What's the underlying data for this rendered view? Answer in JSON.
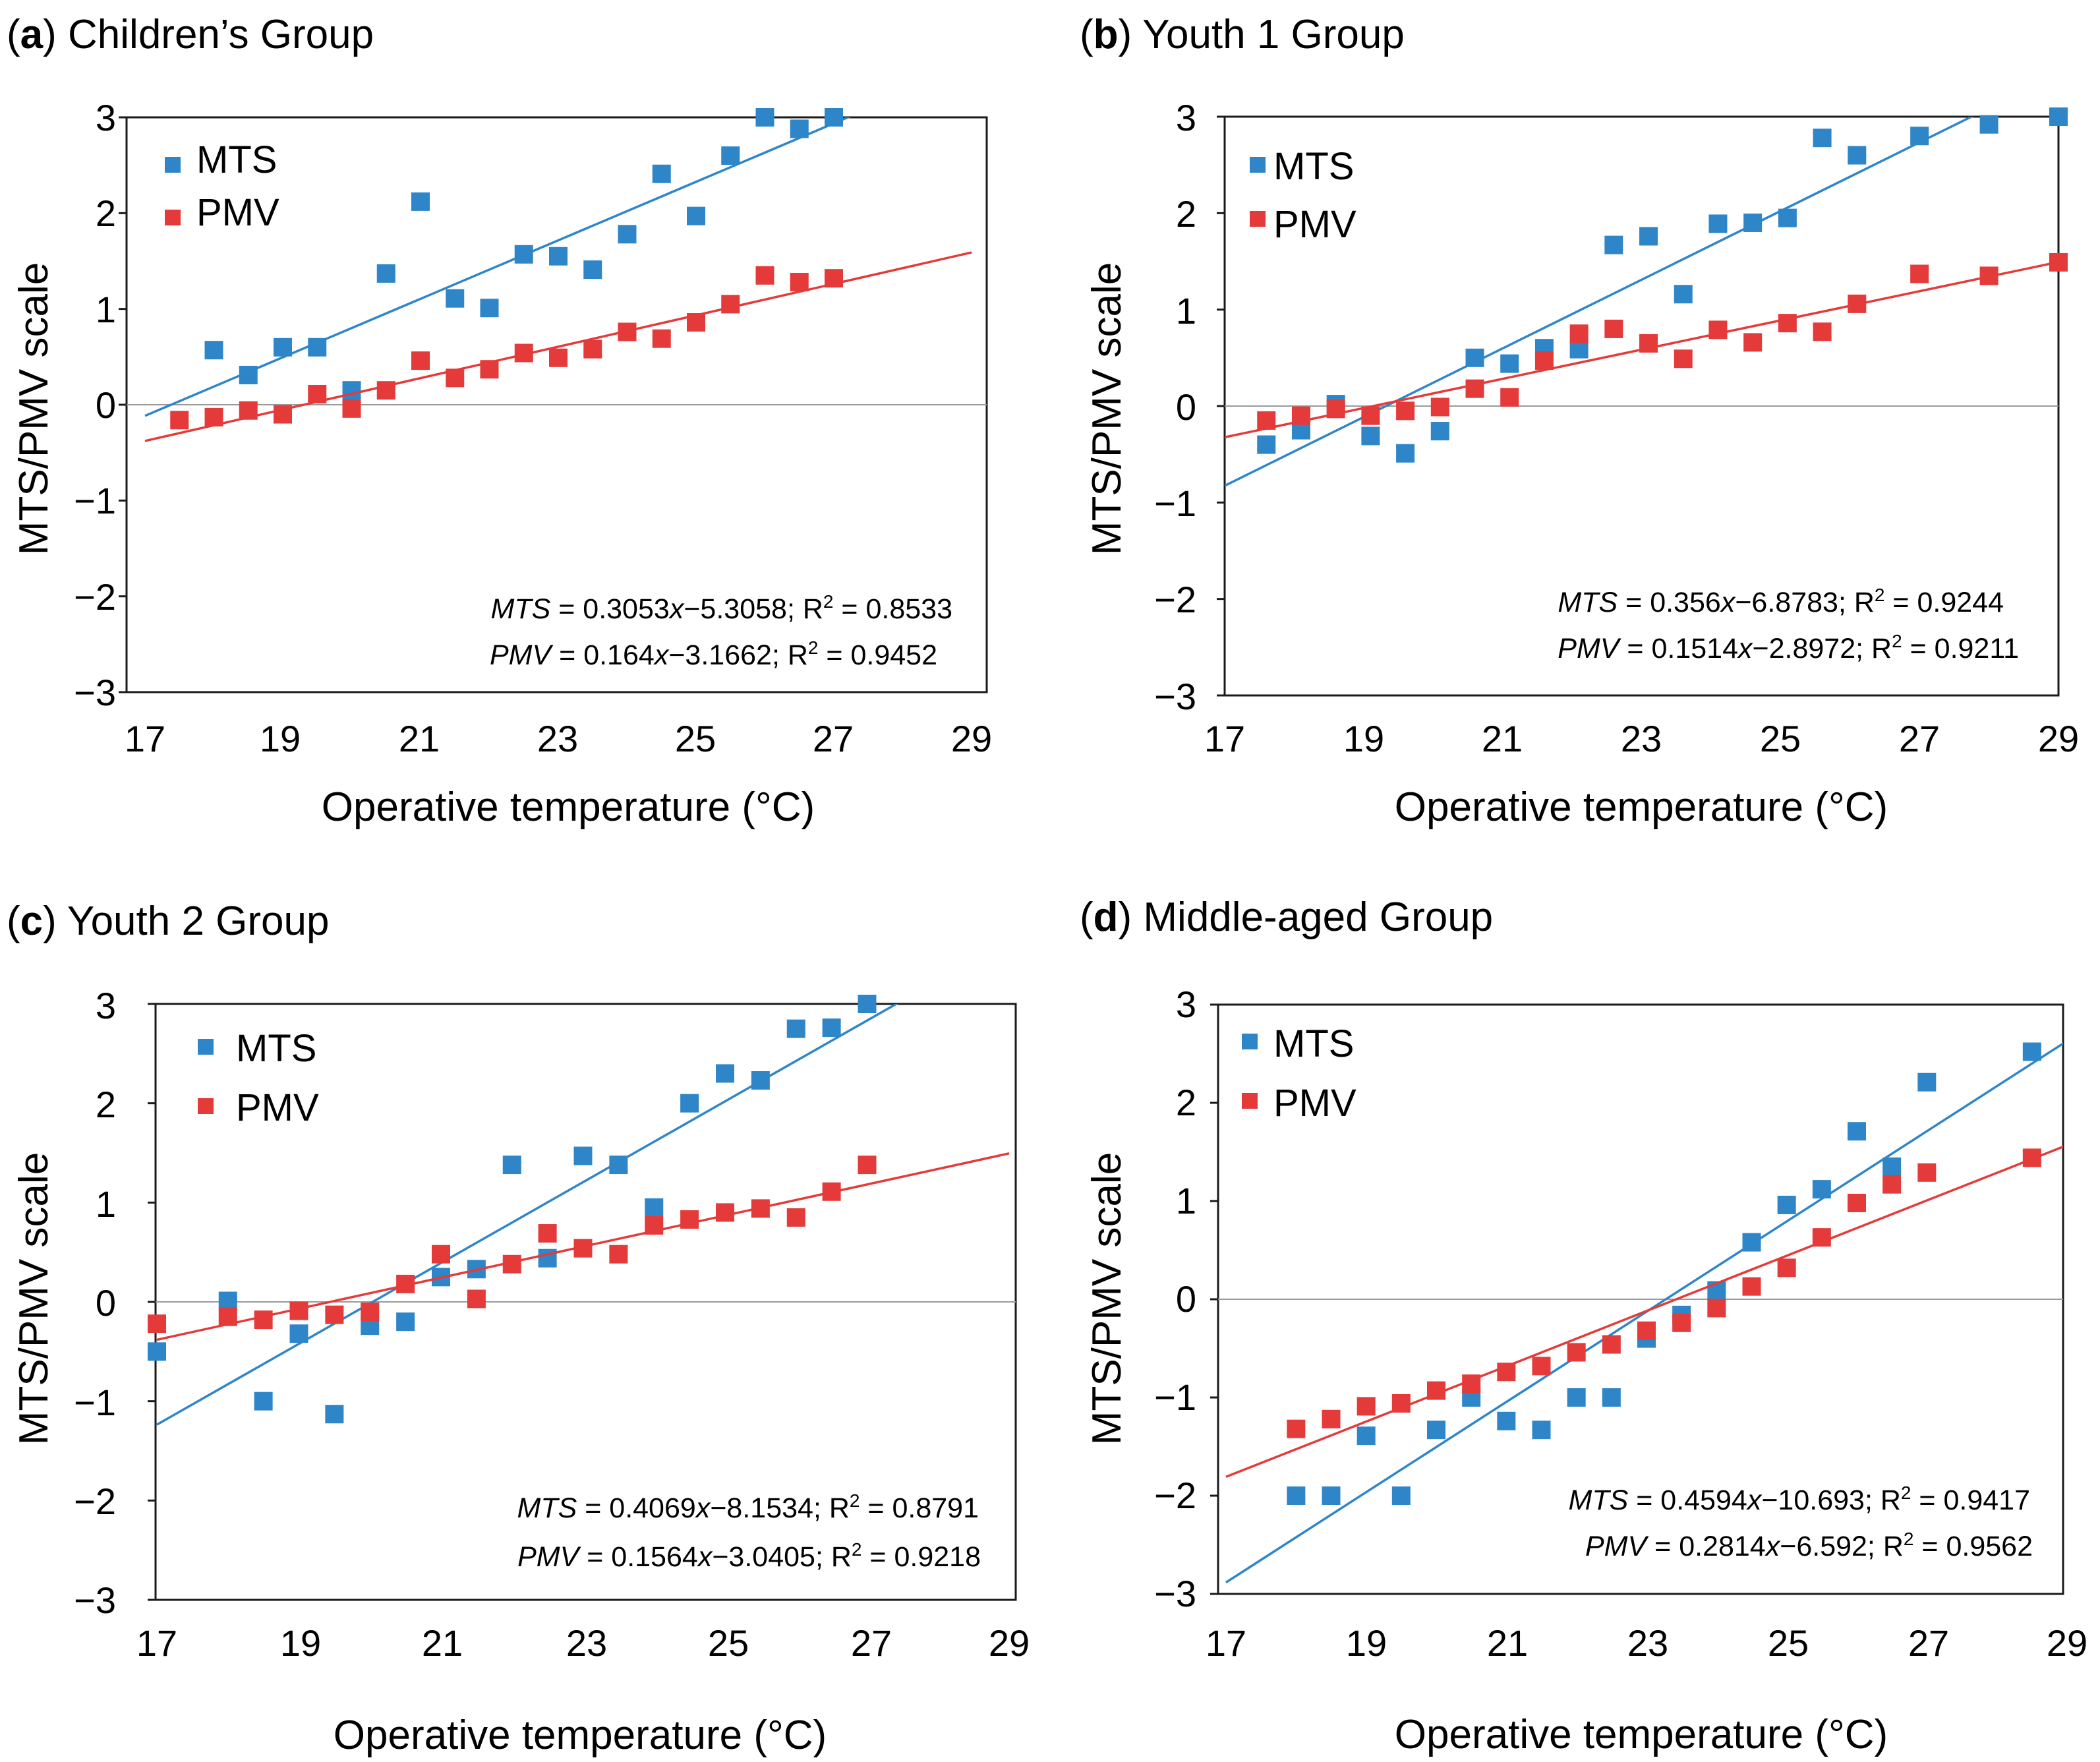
{
  "chart_data": [
    {
      "panel": "a",
      "title": "Children’s Group",
      "type": "scatter",
      "xlabel": "Operative temperature (°C)",
      "ylabel": "MTS/PMV scale",
      "xlim": [
        17,
        29
      ],
      "ylim": [
        -3,
        3
      ],
      "xticks": [
        "17",
        "19",
        "21",
        "23",
        "25",
        "27",
        "29"
      ],
      "yticks": [
        "3",
        "2",
        "1",
        "0",
        "−1",
        "−2",
        "−3"
      ],
      "legend": [
        "MTS",
        "PMV"
      ],
      "series": [
        {
          "name": "MTS",
          "color": "#2e86c8",
          "x": [
            18,
            18.5,
            19,
            19.5,
            20,
            20.5,
            21,
            21.5,
            22,
            22.5,
            23,
            23.5,
            24,
            24.5,
            25,
            25.5,
            26,
            26.5,
            27
          ],
          "y": [
            0.57,
            0.31,
            0.6,
            0.6,
            0.15,
            1.37,
            2.12,
            1.11,
            1.01,
            1.57,
            1.55,
            1.41,
            1.78,
            2.41,
            1.97,
            2.6,
            3.0,
            2.88,
            3.0
          ],
          "fit": {
            "slope": 0.3053,
            "intercept": -5.3058
          }
        },
        {
          "name": "PMV",
          "color": "#e53a3a",
          "x": [
            17.5,
            18,
            18.5,
            19,
            19.5,
            20,
            20.5,
            21,
            21.5,
            22,
            22.5,
            23,
            23.5,
            24,
            24.5,
            25,
            25.5,
            26,
            26.5,
            27
          ],
          "y": [
            -0.16,
            -0.13,
            -0.06,
            -0.1,
            0.11,
            -0.04,
            0.15,
            0.46,
            0.28,
            0.37,
            0.54,
            0.49,
            0.58,
            0.76,
            0.69,
            0.86,
            1.05,
            1.35,
            1.28,
            1.32
          ],
          "fit": {
            "slope": 0.164,
            "intercept": -3.1662
          }
        }
      ],
      "equations": [
        {
          "lhs": "MTS",
          "coef": " = 0.3053",
          "x": "x",
          "rest": "−5.3058; R",
          "sup": "2",
          "r2": " = 0.8533"
        },
        {
          "lhs": "PMV",
          "coef": " = 0.164",
          "x": "x",
          "rest": "−3.1662; R",
          "sup": "2",
          "r2": " = 0.9452"
        }
      ]
    },
    {
      "panel": "b",
      "title": "Youth 1 Group",
      "type": "scatter",
      "xlabel": "Operative temperature (°C)",
      "ylabel": "MTS/PMV scale",
      "xlim": [
        17,
        29
      ],
      "ylim": [
        -3,
        3
      ],
      "xticks": [
        "17",
        "19",
        "21",
        "23",
        "25",
        "27",
        "29"
      ],
      "yticks": [
        "3",
        "2",
        "1",
        "0",
        "−1",
        "−2",
        "−3"
      ],
      "legend": [
        "MTS",
        "PMV"
      ],
      "series": [
        {
          "name": "MTS",
          "color": "#2e86c8",
          "x": [
            17.6,
            18.1,
            18.6,
            19.1,
            19.6,
            20.1,
            20.6,
            21.1,
            21.6,
            22.1,
            22.6,
            23.1,
            23.6,
            24.1,
            24.6,
            25.1,
            25.6,
            26.1,
            27,
            28,
            29
          ],
          "y": [
            -0.4,
            -0.25,
            0.02,
            -0.31,
            -0.49,
            -0.26,
            0.5,
            0.44,
            0.6,
            0.59,
            1.67,
            1.76,
            1.16,
            1.89,
            1.9,
            1.95,
            2.78,
            2.6,
            2.8,
            2.92,
            3.0
          ],
          "fit": {
            "slope": 0.356,
            "intercept": -6.8783
          }
        },
        {
          "name": "PMV",
          "color": "#e53a3a",
          "x": [
            17.6,
            18.1,
            18.6,
            19.1,
            19.6,
            20.1,
            20.6,
            21.1,
            21.6,
            22.1,
            22.6,
            23.1,
            23.6,
            24.1,
            24.6,
            25.1,
            25.6,
            26.1,
            27,
            28,
            29
          ],
          "y": [
            -0.15,
            -0.1,
            -0.03,
            -0.1,
            -0.05,
            -0.01,
            0.18,
            0.09,
            0.47,
            0.75,
            0.8,
            0.65,
            0.49,
            0.79,
            0.66,
            0.86,
            0.77,
            1.06,
            1.37,
            1.35,
            1.49
          ],
          "fit": {
            "slope": 0.1514,
            "intercept": -2.8972
          }
        }
      ],
      "equations": [
        {
          "lhs": "MTS",
          "coef": " = 0.356",
          "x": "x",
          "rest": "−6.8783; R",
          "sup": "2",
          "r2": " = 0.9244"
        },
        {
          "lhs": "PMV",
          "coef": " = 0.1514",
          "x": "x",
          "rest": "−2.8972; R",
          "sup": "2",
          "r2": " = 0.9211"
        }
      ]
    },
    {
      "panel": "c",
      "title": "Youth 2 Group",
      "type": "scatter",
      "xlabel": "Operative temperature (°C)",
      "ylabel": "MTS/PMV scale",
      "xlim": [
        17,
        29
      ],
      "ylim": [
        -3,
        3
      ],
      "xticks": [
        "17",
        "19",
        "21",
        "23",
        "25",
        "27",
        "29"
      ],
      "yticks": [
        "3",
        "2",
        "1",
        "0",
        "−1",
        "−2",
        "−3"
      ],
      "legend": [
        "MTS",
        "PMV"
      ],
      "series": [
        {
          "name": "MTS",
          "color": "#2e86c8",
          "x": [
            17,
            18,
            18.5,
            19,
            19.5,
            20,
            20.5,
            21,
            21.5,
            22,
            22.5,
            23,
            23.5,
            24,
            24.5,
            25,
            25.5,
            26,
            26.5,
            27
          ],
          "y": [
            -0.5,
            0.01,
            -1.0,
            -0.32,
            -1.13,
            -0.24,
            -0.2,
            0.25,
            0.33,
            1.38,
            0.44,
            1.47,
            1.38,
            0.95,
            2.0,
            2.3,
            2.23,
            2.75,
            2.76,
            3.0
          ],
          "fit": {
            "slope": 0.4069,
            "intercept": -8.1534
          }
        },
        {
          "name": "PMV",
          "color": "#e53a3a",
          "x": [
            17,
            18,
            18.5,
            19,
            19.5,
            20,
            20.5,
            21,
            21.5,
            22,
            22.5,
            23,
            23.5,
            24,
            24.5,
            25,
            25.5,
            26,
            26.5,
            27
          ],
          "y": [
            -0.22,
            -0.15,
            -0.18,
            -0.09,
            -0.13,
            -0.1,
            0.18,
            0.48,
            0.03,
            0.38,
            0.69,
            0.54,
            0.48,
            0.77,
            0.83,
            0.9,
            0.94,
            0.85,
            1.11,
            1.38
          ],
          "fit": {
            "slope": 0.1564,
            "intercept": -3.0405
          }
        }
      ],
      "equations": [
        {
          "lhs": "MTS",
          "coef": " = 0.4069",
          "x": "x",
          "rest": "−8.1534; R",
          "sup": "2",
          "r2": " = 0.8791"
        },
        {
          "lhs": "PMV",
          "coef": " = 0.1564",
          "x": "x",
          "rest": "−3.0405; R",
          "sup": "2",
          "r2": " = 0.9218"
        }
      ]
    },
    {
      "panel": "d",
      "title": "Middle-aged Group",
      "type": "scatter",
      "xlabel": "Operative temperature (°C)",
      "ylabel": "MTS/PMV scale",
      "xlim": [
        17,
        29
      ],
      "ylim": [
        -3,
        3
      ],
      "xticks": [
        "17",
        "19",
        "21",
        "23",
        "25",
        "27",
        "29"
      ],
      "yticks": [
        "3",
        "2",
        "1",
        "0",
        "−1",
        "−2",
        "−3"
      ],
      "legend": [
        "MTS",
        "PMV"
      ],
      "series": [
        {
          "name": "MTS",
          "color": "#2e86c8",
          "x": [
            18,
            18.5,
            19,
            19.5,
            20,
            20.5,
            21,
            21.5,
            22,
            22.5,
            23,
            23.5,
            24,
            24.5,
            25,
            25.5,
            26,
            26.5,
            27,
            28.5
          ],
          "y": [
            -2.0,
            -2.0,
            -1.39,
            -2.0,
            -1.33,
            -1.0,
            -1.24,
            -1.33,
            -1.0,
            -1.0,
            -0.4,
            -0.16,
            0.09,
            0.58,
            0.96,
            1.12,
            1.71,
            1.35,
            2.21,
            2.52
          ],
          "fit": {
            "slope": 0.4594,
            "intercept": -10.693
          }
        },
        {
          "name": "PMV",
          "color": "#e53a3a",
          "x": [
            18,
            18.5,
            19,
            19.5,
            20,
            20.5,
            21,
            21.5,
            22,
            22.5,
            23,
            23.5,
            24,
            24.5,
            25,
            25.5,
            26,
            26.5,
            27,
            28.5
          ],
          "y": [
            -1.32,
            -1.22,
            -1.09,
            -1.06,
            -0.93,
            -0.86,
            -0.74,
            -0.68,
            -0.54,
            -0.46,
            -0.32,
            -0.24,
            -0.09,
            0.13,
            0.32,
            0.63,
            0.98,
            1.17,
            1.29,
            1.44
          ],
          "fit": {
            "slope": 0.2814,
            "intercept": -6.592
          }
        }
      ],
      "equations": [
        {
          "lhs": "MTS",
          "coef": " = 0.4594",
          "x": "x",
          "rest": "−10.693; R",
          "sup": "2",
          "r2": " = 0.9417"
        },
        {
          "lhs": "PMV",
          "coef": " = 0.2814",
          "x": "x",
          "rest": "−6.592; R",
          "sup": "2",
          "r2": " = 0.9562"
        }
      ]
    }
  ]
}
